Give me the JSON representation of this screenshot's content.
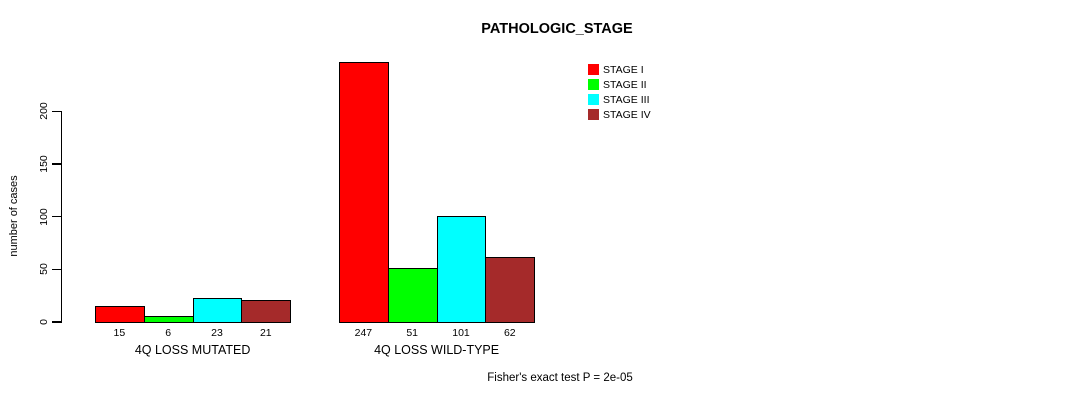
{
  "chart_data": {
    "type": "bar",
    "title": "PATHOLOGIC_STAGE",
    "ylabel": "number of cases",
    "xlabel": "",
    "ylim": [
      0,
      200
    ],
    "yticks": [
      0,
      50,
      100,
      150,
      200
    ],
    "grid": false,
    "legend_position": "top-right",
    "categories": [
      "4Q LOSS MUTATED",
      "4Q LOSS WILD-TYPE"
    ],
    "series": [
      {
        "name": "STAGE I",
        "color": "#ff0000",
        "values": [
          15,
          247
        ]
      },
      {
        "name": "STAGE II",
        "color": "#00ff00",
        "values": [
          6,
          51
        ]
      },
      {
        "name": "STAGE III",
        "color": "#00ffff",
        "values": [
          23,
          101
        ]
      },
      {
        "name": "STAGE IV",
        "color": "#a52a2a",
        "values": [
          21,
          62
        ]
      }
    ],
    "bar_value_labels": [
      [
        15,
        6,
        23,
        21
      ],
      [
        247,
        51,
        101,
        62
      ]
    ],
    "annotation": "Fisher's exact test P = 2e-05"
  }
}
